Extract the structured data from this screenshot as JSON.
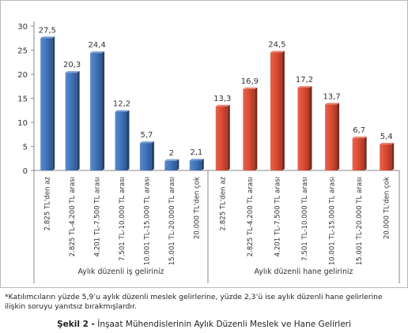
{
  "chart_data": {
    "type": "bar",
    "ylim": [
      0,
      30
    ],
    "yticks": [
      0,
      5,
      10,
      15,
      20,
      25,
      30
    ],
    "grid": false,
    "groups": [
      {
        "label": "Aylık düzenli iş geliriniz",
        "color": "#3f74bc",
        "categories": [
          "2.825 TL'den az",
          "2.825 TL-4.200 TL arası",
          "4.201 TL-7.500 TL arası",
          "7.501 TL-10.000 TL arası",
          "10.001 TL-15.000 TL arası",
          "15.001 TL-20.000 TL arası",
          "20.000 TL'den çok"
        ],
        "values": [
          27.5,
          20.3,
          24.4,
          12.2,
          5.7,
          2,
          2.1
        ],
        "value_labels": [
          "27,5",
          "20,3",
          "24,4",
          "12,2",
          "5,7",
          "2",
          "2,1"
        ]
      },
      {
        "label": "Aylık düzenli hane geliriniz",
        "color": "#de4a32",
        "categories": [
          "2.825 TL'den az",
          "2.825 TL-4.200 TL arası",
          "4.201 TL-7.500 TL arası",
          "7.501 TL-10.000 TL arası",
          "10.001 TL-15.000 TL arası",
          "15.001 TL-20.000 TL arası",
          "20.000 TL'den çok"
        ],
        "values": [
          13.3,
          16.9,
          24.5,
          17.2,
          13.7,
          6.7,
          5.4
        ],
        "value_labels": [
          "13,3",
          "16,9",
          "24,5",
          "17,2",
          "13,7",
          "6,7",
          "5,4"
        ]
      }
    ]
  },
  "footnote": "*Katılımcıların yüzde 5,9’u aylık düzenli meslek gelirlerine, yüzde 2,3’ü ise aylık düzenli hane gelirlerine ilişkin soruyu yanıtsız bırakmışlardır.",
  "caption": {
    "prefix": "Şekil 2 -",
    "text": " İnşaat Mühendislerinin Aylık Düzenli Meslek ve Hane Gelirleri"
  }
}
